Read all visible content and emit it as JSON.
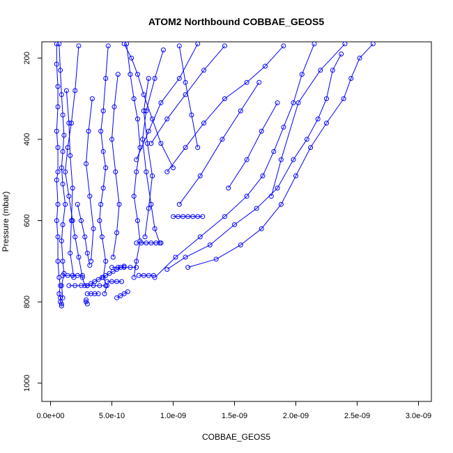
{
  "chart_data": {
    "type": "scatter",
    "title": "ATOM2 Northbound COBBAE_GEOS5",
    "xlabel": "COBBAE_GEOS5",
    "ylabel": "Pressure (mbar)",
    "xlim": [
      0,
      3e-09
    ],
    "ylim": [
      1045,
      160
    ],
    "y_reversed": true,
    "x_ticks": [
      0,
      5e-10,
      1e-09,
      1.5e-09,
      2e-09,
      2.5e-09,
      3e-09
    ],
    "x_tick_labels": [
      "0.0e+00",
      "5.0e-10",
      "1.0e-09",
      "1.5e-09",
      "2.0e-09",
      "2.5e-09",
      "3.0e-09"
    ],
    "y_ticks": [
      200,
      400,
      600,
      800,
      1000
    ],
    "y_tick_labels": [
      "200",
      "400",
      "600",
      "800",
      "1000"
    ],
    "series_color": "#0000ff",
    "marker": "open-circle",
    "grid": false,
    "series": [
      {
        "x": [
          5e-11,
          5e-11,
          6e-11,
          6e-11,
          5e-11,
          6e-11,
          6e-11,
          5e-11,
          6e-11,
          5e-11,
          6e-11,
          6e-11,
          7e-11,
          8e-11,
          7e-11,
          8e-11,
          8e-11,
          9e-11,
          9e-11
        ],
        "y": [
          165,
          215,
          270,
          320,
          380,
          420,
          480,
          500,
          560,
          600,
          640,
          700,
          740,
          760,
          780,
          790,
          800,
          805,
          810
        ]
      },
      {
        "x": [
          7e-11,
          8e-11,
          9e-11,
          1e-10,
          1.1e-10,
          1e-10,
          9e-11,
          1e-10,
          1.2e-10,
          1e-10,
          9e-11,
          1e-10,
          1.1e-10,
          9e-11,
          1e-10
        ],
        "y": [
          165,
          230,
          290,
          340,
          390,
          430,
          470,
          510,
          560,
          610,
          650,
          700,
          730,
          760,
          790
        ]
      },
      {
        "x": [
          2.3e-10,
          2e-10,
          1.7e-10,
          1.4e-10,
          1.2e-10,
          1.5e-10,
          1.8e-10,
          2e-10,
          2.3e-10,
          2.6e-10,
          2.8e-10
        ],
        "y": [
          170,
          280,
          360,
          420,
          480,
          540,
          600,
          640,
          690,
          740,
          760
        ]
      },
      {
        "x": [
          4.7e-10,
          4.5e-10,
          4.3e-10,
          4.1e-10,
          4.3e-10,
          4.5e-10,
          4.3e-10,
          4.1e-10,
          4e-10,
          4.2e-10,
          4.5e-10,
          4.3e-10,
          4.6e-10,
          4.4e-10
        ],
        "y": [
          170,
          250,
          330,
          380,
          430,
          470,
          520,
          560,
          600,
          640,
          700,
          740,
          760,
          780
        ]
      },
      {
        "x": [
          6.2e-10,
          6.5e-10,
          6.8e-10,
          7.1e-10,
          7.3e-10,
          7e-10,
          6.8e-10,
          7.1e-10,
          7.3e-10,
          7e-10,
          6.8e-10
        ],
        "y": [
          165,
          240,
          300,
          350,
          420,
          480,
          540,
          600,
          650,
          700,
          740
        ]
      },
      {
        "x": [
          9.2e-10,
          8.5e-10,
          7.8e-10,
          7.5e-10,
          7.8e-10,
          8.2e-10,
          8.5e-10,
          8.9e-10
        ],
        "y": [
          180,
          250,
          330,
          400,
          480,
          560,
          620,
          655
        ]
      },
      {
        "x": [
          7e-10,
          7.4e-10,
          7.8e-10,
          8.2e-10,
          8.6e-10,
          9e-10
        ],
        "y": [
          655,
          655,
          655,
          655,
          655,
          655
        ]
      },
      {
        "x": [
          1e-09,
          1.04e-09,
          1.08e-09,
          1.12e-09,
          1.16e-09,
          1.2e-09,
          1.24e-09
        ],
        "y": [
          590,
          590,
          590,
          590,
          590,
          590,
          590
        ]
      },
      {
        "x": [
          2.63e-09,
          2.52e-09,
          2.45e-09,
          2.39e-09,
          2.25e-09,
          2.12e-09,
          2e-09,
          1.88e-09,
          1.72e-09,
          1.55e-09,
          1.35e-09,
          1.12e-09
        ],
        "y": [
          165,
          200,
          250,
          300,
          360,
          420,
          490,
          560,
          620,
          660,
          695,
          715
        ]
      },
      {
        "x": [
          2.37e-09,
          2.3e-09,
          2.25e-09,
          2.18e-09,
          2.09e-09,
          1.98e-09,
          1.85e-09,
          1.68e-09,
          1.5e-09,
          1.3e-09,
          1.1e-09,
          9.5e-10
        ],
        "y": [
          190,
          230,
          300,
          350,
          400,
          450,
          520,
          570,
          610,
          660,
          690,
          720
        ]
      },
      {
        "x": [
          2.15e-09,
          2.05e-09,
          1.98e-09,
          1.9e-09,
          1.82e-09,
          1.73e-09,
          1.6e-09,
          1.42e-09,
          1.22e-09,
          1.02e-09,
          8.5e-10
        ],
        "y": [
          165,
          240,
          310,
          370,
          430,
          490,
          540,
          590,
          640,
          690,
          740
        ]
      },
      {
        "x": [
          1.9e-09,
          1.75e-09,
          1.6e-09,
          1.42e-09,
          1.25e-09,
          1.1e-09,
          9.5e-10
        ],
        "y": [
          170,
          220,
          260,
          300,
          360,
          420,
          480
        ]
      },
      {
        "x": [
          2.4e-09,
          2.2e-09,
          2.02e-09,
          1.88e-09,
          1.8e-09
        ],
        "y": [
          165,
          230,
          310,
          450,
          540
        ]
      },
      {
        "x": [
          1.42e-09,
          1.25e-09,
          1.1e-09,
          9.5e-10,
          8.2e-10
        ],
        "y": [
          170,
          230,
          290,
          350,
          410
        ]
      },
      {
        "x": [
          1.7e-09,
          1.55e-09,
          1.4e-09,
          1.22e-09,
          1.05e-09
        ],
        "y": [
          260,
          330,
          400,
          490,
          560
        ]
      },
      {
        "x": [
          1.85e-09,
          1.72e-09,
          1.6e-09,
          1.45e-09
        ],
        "y": [
          310,
          380,
          450,
          520
        ]
      },
      {
        "x": [
          1.2e-09,
          1.05e-09,
          9e-10,
          8e-10,
          7e-10
        ],
        "y": [
          165,
          250,
          310,
          380,
          450
        ]
      },
      {
        "x": [
          3e-10,
          3.3e-10,
          3.6e-10,
          3.9e-10,
          4.2e-10,
          4.5e-10,
          4.8e-10,
          5.1e-10,
          5.4e-10,
          5.7e-10,
          6e-10
        ],
        "y": [
          760,
          755,
          750,
          745,
          740,
          735,
          730,
          725,
          720,
          715,
          712
        ]
      },
      {
        "x": [
          1.5e-10,
          2e-10,
          2.5e-10,
          3e-10,
          3.5e-10,
          4e-10,
          4.5e-10
        ],
        "y": [
          760,
          760,
          760,
          760,
          760,
          760,
          760
        ]
      },
      {
        "x": [
          1e-10,
          1.4e-10,
          1.8e-10,
          2.2e-10,
          2.6e-10
        ],
        "y": [
          735,
          735,
          735,
          735,
          735
        ]
      },
      {
        "x": [
          5e-10,
          5.5e-10,
          6e-10,
          6.5e-10,
          7e-10
        ],
        "y": [
          715,
          715,
          715,
          715,
          715
        ]
      },
      {
        "x": [
          7.2e-10,
          7.6e-10,
          8e-10,
          8.4e-10
        ],
        "y": [
          735,
          735,
          735,
          735
        ]
      },
      {
        "x": [
          4.6e-10,
          5e-10,
          5.4e-10,
          5.8e-10
        ],
        "y": [
          750,
          750,
          750,
          750
        ]
      },
      {
        "x": [
          3e-10,
          3.3e-10,
          3.6e-10,
          3.9e-10
        ],
        "y": [
          780,
          780,
          780,
          780
        ]
      },
      {
        "x": [
          5.4e-10,
          5.7e-10,
          6e-10,
          6.3e-10
        ],
        "y": [
          790,
          785,
          780,
          775
        ]
      },
      {
        "x": [
          2.9e-10,
          2.9e-10,
          3e-10
        ],
        "y": [
          795,
          800,
          805
        ]
      },
      {
        "x": [
          1.3e-10,
          1.5e-10,
          1.6e-10,
          1.8e-10,
          1.7e-10,
          1.6e-10,
          1.9e-10
        ],
        "y": [
          280,
          360,
          440,
          520,
          600,
          680,
          740
        ]
      },
      {
        "x": [
          3.4e-10,
          3.1e-10,
          2.9e-10,
          3.2e-10,
          3.5e-10,
          3.3e-10
        ],
        "y": [
          300,
          380,
          460,
          540,
          620,
          700
        ]
      },
      {
        "x": [
          5.5e-10,
          5.2e-10,
          5e-10,
          5.3e-10,
          5.6e-10,
          5.4e-10,
          5.1e-10
        ],
        "y": [
          240,
          320,
          400,
          480,
          560,
          630,
          690
        ]
      },
      {
        "x": [
          8e-10,
          7.6e-10,
          7.9e-10,
          8.3e-10,
          8e-10,
          7.7e-10
        ],
        "y": [
          250,
          330,
          410,
          490,
          570,
          640
        ]
      },
      {
        "x": [
          6e-10,
          6.6e-10,
          7.1e-10,
          7.6e-10,
          8.3e-10,
          9e-10,
          1e-09
        ],
        "y": [
          165,
          200,
          240,
          290,
          350,
          410,
          470
        ]
      },
      {
        "x": [
          1.05e-09,
          1.1e-09,
          1.15e-09,
          1.2e-09
        ],
        "y": [
          170,
          260,
          340,
          420
        ]
      },
      {
        "x": [
          2.2e-10,
          2.5e-10,
          2.8e-10,
          3e-10,
          3.2e-10
        ],
        "y": [
          560,
          600,
          640,
          680,
          710
        ]
      }
    ]
  }
}
